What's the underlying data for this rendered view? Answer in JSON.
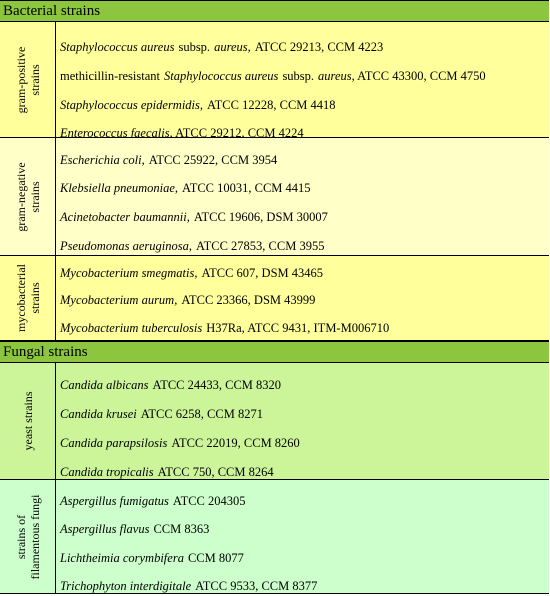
{
  "sections": [
    {
      "title": "Bacterial strains",
      "header_bg": "#8cc63f",
      "groups": [
        {
          "label_lines": [
            "gram-positive",
            "strains"
          ],
          "bg": "#ffff9c",
          "rows": [
            {
              "pre": "",
              "name": "Staphylococcus aureus",
              "sub": "subsp.",
              "sub_name": "aureus,",
              "rest": "ATCC 29213, CCM 4223"
            },
            {
              "pre": "methicillin-resistant",
              "name": "Staphylococcus aureus",
              "sub": "subsp.",
              "sub_name": "aureus",
              "rest": ", ATCC 43300, CCM 4750"
            },
            {
              "pre": "",
              "name": "Staphylococcus epidermidis,",
              "sub": "",
              "sub_name": "",
              "rest": "ATCC 12228, CCM 4418"
            },
            {
              "pre": "",
              "name": "Enterococcus faecalis",
              "sub": "",
              "sub_name": "",
              "rest": ", ATCC 29212, CCM 4224"
            }
          ]
        },
        {
          "label_lines": [
            "gram-negative",
            "strains"
          ],
          "bg": "#ffffc8",
          "rows": [
            {
              "pre": "",
              "name": "Escherichia coli,",
              "sub": "",
              "sub_name": "",
              "rest": "ATCC 25922, CCM 3954"
            },
            {
              "pre": "",
              "name": "Klebsiella pneumoniae,",
              "sub": "",
              "sub_name": "",
              "rest": "ATCC 10031, CCM 4415"
            },
            {
              "pre": "",
              "name": "Acinetobacter baumannii,",
              "sub": "",
              "sub_name": "",
              "rest": "ATCC 19606, DSM 30007"
            },
            {
              "pre": "",
              "name": "Pseudomonas aeruginosa,",
              "sub": "",
              "sub_name": "",
              "rest": "ATCC 27853, CCM 3955"
            }
          ]
        },
        {
          "label_lines": [
            "mycobacterial",
            "strains"
          ],
          "bg": "#ffff9c",
          "rows": [
            {
              "pre": "",
              "name": "Mycobacterium smegmatis,",
              "sub": "",
              "sub_name": "",
              "rest": "ATCC 607, DSM 43465"
            },
            {
              "pre": "",
              "name": "Mycobacterium aurum,",
              "sub": "",
              "sub_name": "",
              "rest": "ATCC 23366, DSM 43999"
            },
            {
              "pre": "",
              "name": "Mycobacterium tuberculosis",
              "sub": "",
              "sub_name": "",
              "rest": "H37Ra, ATCC 9431, ITM-M006710"
            }
          ]
        }
      ]
    },
    {
      "title": "Fungal strains",
      "header_bg": "#8cc63f",
      "groups": [
        {
          "label_lines": [
            "yeast strains"
          ],
          "bg": "#ccf59a",
          "rows": [
            {
              "pre": "",
              "name": "Candida albicans",
              "sub": "",
              "sub_name": "",
              "rest": "ATCC 24433, CCM 8320"
            },
            {
              "pre": "",
              "name": "Candida krusei",
              "sub": "",
              "sub_name": "",
              "rest": "ATCC 6258, CCM 8271"
            },
            {
              "pre": "",
              "name": "Candida parapsilosis",
              "sub": "",
              "sub_name": "",
              "rest": "ATCC 22019, CCM 8260"
            },
            {
              "pre": "",
              "name": "Candida tropicalis",
              "sub": "",
              "sub_name": "",
              "rest": "ATCC 750, CCM 8264"
            }
          ]
        },
        {
          "label_lines": [
            "strains of",
            "filamentous fungi"
          ],
          "bg": "#ccffcc",
          "rows": [
            {
              "pre": "",
              "name": "Aspergillus fumigatus",
              "sub": "",
              "sub_name": "",
              "rest": "ATCC 204305"
            },
            {
              "pre": "",
              "name": "Aspergillus flavus",
              "sub": "",
              "sub_name": "",
              "rest": "CCM 8363"
            },
            {
              "pre": "",
              "name": "Lichtheimia corymbifera",
              "sub": "",
              "sub_name": "",
              "rest": "CCM 8077"
            },
            {
              "pre": "",
              "name": "Trichophyton interdigitale",
              "sub": "",
              "sub_name": "",
              "rest": "ATCC 9533, CCM 8377"
            }
          ]
        }
      ]
    }
  ]
}
